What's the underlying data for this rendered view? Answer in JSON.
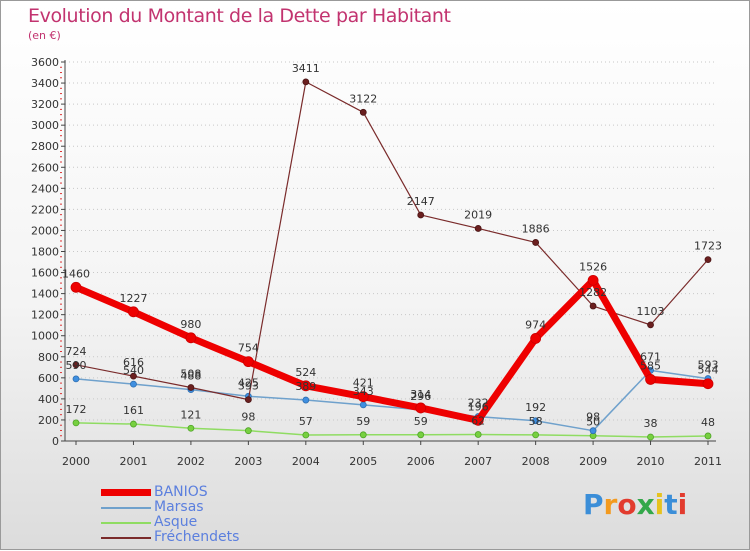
{
  "header": {
    "title": "Evolution du Montant de la Dette par Habitant",
    "subtitle": "(en €)"
  },
  "logo": {
    "letters": [
      "P",
      "r",
      "o",
      "x",
      "i",
      "t",
      "i"
    ]
  },
  "colors": {
    "title": "#c2336f",
    "BANIOS": "#ee0000",
    "Marsas": "#6fa1cc",
    "Asque": "#8fdc62",
    "Fréchendets": "#7a2b2b",
    "legend_text": "#5b7fde"
  },
  "chart_data": {
    "type": "line",
    "title": "Evolution du Montant de la Dette par Habitant",
    "subtitle": "(en €)",
    "xlabel": "",
    "ylabel": "",
    "x": [
      "2000",
      "2001",
      "2002",
      "2003",
      "2004",
      "2005",
      "2006",
      "2007",
      "2008",
      "2009",
      "2010",
      "2011"
    ],
    "ylim": [
      0,
      3600
    ],
    "yticks": [
      0,
      200,
      400,
      600,
      800,
      1000,
      1200,
      1400,
      1600,
      1800,
      2000,
      2200,
      2400,
      2600,
      2800,
      3000,
      3200,
      3400,
      3600
    ],
    "legend_position": "bottom-left",
    "series": [
      {
        "name": "BANIOS",
        "values": [
          1460,
          1227,
          980,
          754,
          524,
          421,
          314,
          196,
          974,
          1526,
          585,
          544
        ],
        "labels": [
          "1460",
          "1227",
          "980",
          "754",
          "524",
          "421",
          "314",
          "196",
          "974",
          "1526",
          "585",
          "544"
        ]
      },
      {
        "name": "Marsas",
        "values": [
          590,
          540,
          488,
          425,
          389,
          343,
          296,
          232,
          192,
          98,
          671,
          593
        ],
        "labels": [
          "590",
          "540",
          "488",
          "425",
          "389",
          "343",
          "296",
          "232",
          "192",
          "98",
          "671",
          "593"
        ]
      },
      {
        "name": "Asque",
        "values": [
          172,
          161,
          121,
          98,
          57,
          59,
          59,
          62,
          58,
          50,
          38,
          48
        ],
        "labels": [
          "172",
          "161",
          "121",
          "98",
          "57",
          "59",
          "59",
          "62",
          "58",
          "50",
          "38",
          "48"
        ]
      },
      {
        "name": "Fréchendets",
        "values": [
          724,
          616,
          508,
          393,
          3411,
          3122,
          2147,
          2019,
          1886,
          1282,
          1103,
          1723
        ],
        "labels": [
          "724",
          "616",
          "508",
          "393",
          "3411",
          "3122",
          "2147",
          "2019",
          "1886",
          "1282",
          "1103",
          "1723"
        ]
      }
    ]
  }
}
